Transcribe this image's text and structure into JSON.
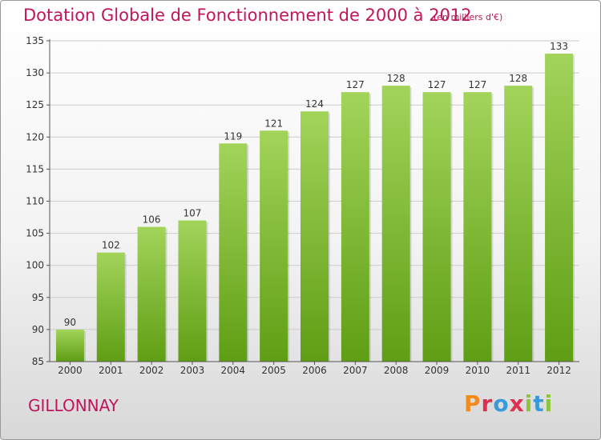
{
  "header": {
    "title": "Dotation Globale de Fonctionnement de 2000 à 2012",
    "subtitle": "(en milliers d'€)"
  },
  "footer": {
    "location": "GILLONNAY",
    "brand": "Proxiti",
    "brand_colors": [
      "#f28a1c",
      "#e0304f",
      "#3a9ad9",
      "#e0304f",
      "#8cc43c",
      "#3a9ad9",
      "#8cc43c"
    ]
  },
  "colors": {
    "title": "#c0155b",
    "bar_light": "#a2d45a",
    "bar_dark": "#5f9e14",
    "grid": "#cccccc",
    "axis": "#555555"
  },
  "chart_data": {
    "type": "bar",
    "categories": [
      "2000",
      "2001",
      "2002",
      "2003",
      "2004",
      "2005",
      "2006",
      "2007",
      "2008",
      "2009",
      "2010",
      "2011",
      "2012"
    ],
    "values": [
      90,
      102,
      106,
      107,
      119,
      121,
      124,
      127,
      128,
      127,
      127,
      128,
      133
    ],
    "data_labels": [
      "90",
      "102",
      "106",
      "107",
      "119",
      "121",
      "124",
      "127",
      "128",
      "127",
      "127",
      "128",
      "133"
    ],
    "title": "Dotation Globale de Fonctionnement de 2000 à 2012",
    "subtitle": "(en milliers d'€)",
    "xlabel": "",
    "ylabel": "",
    "ylim": [
      85,
      135
    ],
    "yticks": [
      "85",
      "90",
      "95",
      "100",
      "105",
      "110",
      "115",
      "120",
      "125",
      "130",
      "135"
    ],
    "grid": true
  }
}
